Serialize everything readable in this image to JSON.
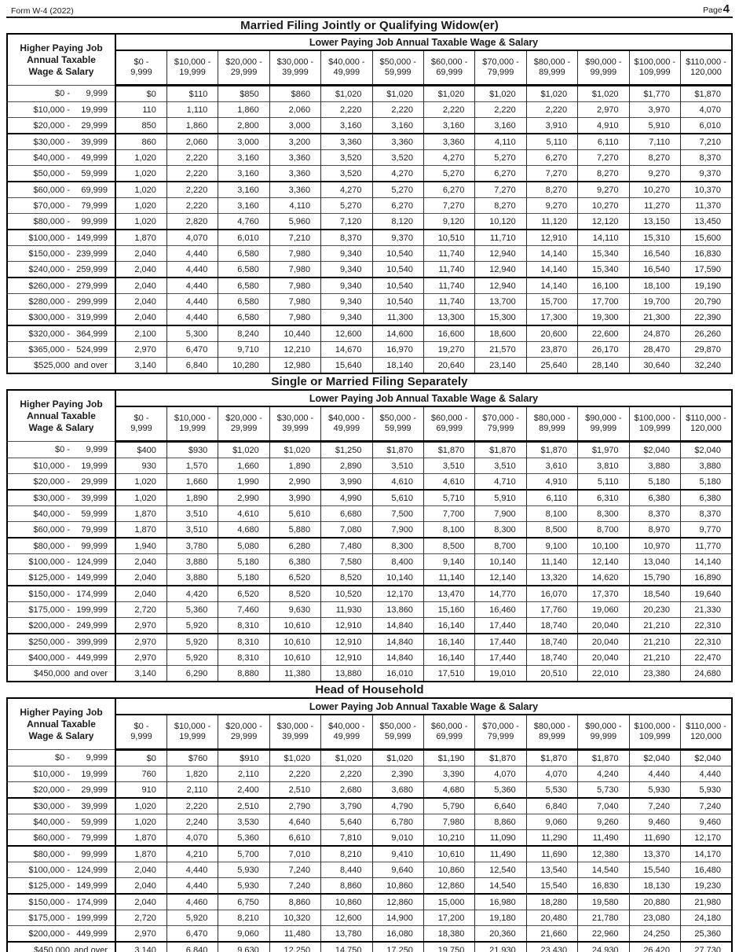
{
  "header": {
    "form_id": "Form W-4 (2022)",
    "page_label": "Page",
    "page_number": "4"
  },
  "shared": {
    "higher_label": [
      "Higher Paying Job",
      "Annual Taxable",
      "Wage & Salary"
    ],
    "lower_label": "Lower Paying Job Annual Taxable Wage & Salary",
    "columns": [
      [
        "$0 -",
        "9,999"
      ],
      [
        "$10,000 -",
        "19,999"
      ],
      [
        "$20,000 -",
        "29,999"
      ],
      [
        "$30,000 -",
        "39,999"
      ],
      [
        "$40,000 -",
        "49,999"
      ],
      [
        "$50,000 -",
        "59,999"
      ],
      [
        "$60,000 -",
        "69,999"
      ],
      [
        "$70,000 -",
        "79,999"
      ],
      [
        "$80,000 -",
        "89,999"
      ],
      [
        "$90,000 -",
        "99,999"
      ],
      [
        "$100,000 -",
        "109,999"
      ],
      [
        "$110,000 -",
        "120,000"
      ]
    ]
  },
  "tables": [
    {
      "title": "Married Filing Jointly or Qualifying Widow(er)",
      "rows": [
        {
          "range": [
            "$0 -",
            "9,999"
          ],
          "values": [
            "$0",
            "$110",
            "$850",
            "$860",
            "$1,020",
            "$1,020",
            "$1,020",
            "$1,020",
            "$1,020",
            "$1,020",
            "$1,770",
            "$1,870"
          ]
        },
        {
          "range": [
            "$10,000 -",
            "19,999"
          ],
          "values": [
            "110",
            "1,110",
            "1,860",
            "2,060",
            "2,220",
            "2,220",
            "2,220",
            "2,220",
            "2,220",
            "2,970",
            "3,970",
            "4,070"
          ]
        },
        {
          "range": [
            "$20,000 -",
            "29,999"
          ],
          "values": [
            "850",
            "1,860",
            "2,800",
            "3,000",
            "3,160",
            "3,160",
            "3,160",
            "3,160",
            "3,910",
            "4,910",
            "5,910",
            "6,010"
          ]
        },
        {
          "range": [
            "$30,000 -",
            "39,999"
          ],
          "values": [
            "860",
            "2,060",
            "3,000",
            "3,200",
            "3,360",
            "3,360",
            "3,360",
            "4,110",
            "5,110",
            "6,110",
            "7,110",
            "7,210"
          ]
        },
        {
          "range": [
            "$40,000 -",
            "49,999"
          ],
          "values": [
            "1,020",
            "2,220",
            "3,160",
            "3,360",
            "3,520",
            "3,520",
            "4,270",
            "5,270",
            "6,270",
            "7,270",
            "8,270",
            "8,370"
          ]
        },
        {
          "range": [
            "$50,000 -",
            "59,999"
          ],
          "values": [
            "1,020",
            "2,220",
            "3,160",
            "3,360",
            "3,520",
            "4,270",
            "5,270",
            "6,270",
            "7,270",
            "8,270",
            "9,270",
            "9,370"
          ]
        },
        {
          "range": [
            "$60,000 -",
            "69,999"
          ],
          "values": [
            "1,020",
            "2,220",
            "3,160",
            "3,360",
            "4,270",
            "5,270",
            "6,270",
            "7,270",
            "8,270",
            "9,270",
            "10,270",
            "10,370"
          ]
        },
        {
          "range": [
            "$70,000 -",
            "79,999"
          ],
          "values": [
            "1,020",
            "2,220",
            "3,160",
            "4,110",
            "5,270",
            "6,270",
            "7,270",
            "8,270",
            "9,270",
            "10,270",
            "11,270",
            "11,370"
          ]
        },
        {
          "range": [
            "$80,000 -",
            "99,999"
          ],
          "values": [
            "1,020",
            "2,820",
            "4,760",
            "5,960",
            "7,120",
            "8,120",
            "9,120",
            "10,120",
            "11,120",
            "12,120",
            "13,150",
            "13,450"
          ]
        },
        {
          "range": [
            "$100,000 -",
            "149,999"
          ],
          "values": [
            "1,870",
            "4,070",
            "6,010",
            "7,210",
            "8,370",
            "9,370",
            "10,510",
            "11,710",
            "12,910",
            "14,110",
            "15,310",
            "15,600"
          ]
        },
        {
          "range": [
            "$150,000 -",
            "239,999"
          ],
          "values": [
            "2,040",
            "4,440",
            "6,580",
            "7,980",
            "9,340",
            "10,540",
            "11,740",
            "12,940",
            "14,140",
            "15,340",
            "16,540",
            "16,830"
          ]
        },
        {
          "range": [
            "$240,000 -",
            "259,999"
          ],
          "values": [
            "2,040",
            "4,440",
            "6,580",
            "7,980",
            "9,340",
            "10,540",
            "11,740",
            "12,940",
            "14,140",
            "15,340",
            "16,540",
            "17,590"
          ]
        },
        {
          "range": [
            "$260,000 -",
            "279,999"
          ],
          "values": [
            "2,040",
            "4,440",
            "6,580",
            "7,980",
            "9,340",
            "10,540",
            "11,740",
            "12,940",
            "14,140",
            "16,100",
            "18,100",
            "19,190"
          ]
        },
        {
          "range": [
            "$280,000 -",
            "299,999"
          ],
          "values": [
            "2,040",
            "4,440",
            "6,580",
            "7,980",
            "9,340",
            "10,540",
            "11,740",
            "13,700",
            "15,700",
            "17,700",
            "19,700",
            "20,790"
          ]
        },
        {
          "range": [
            "$300,000 -",
            "319,999"
          ],
          "values": [
            "2,040",
            "4,440",
            "6,580",
            "7,980",
            "9,340",
            "11,300",
            "13,300",
            "15,300",
            "17,300",
            "19,300",
            "21,300",
            "22,390"
          ]
        },
        {
          "range": [
            "$320,000 -",
            "364,999"
          ],
          "values": [
            "2,100",
            "5,300",
            "8,240",
            "10,440",
            "12,600",
            "14,600",
            "16,600",
            "18,600",
            "20,600",
            "22,600",
            "24,870",
            "26,260"
          ]
        },
        {
          "range": [
            "$365,000 -",
            "524,999"
          ],
          "values": [
            "2,970",
            "6,470",
            "9,710",
            "12,210",
            "14,670",
            "16,970",
            "19,270",
            "21,570",
            "23,870",
            "26,170",
            "28,470",
            "29,870"
          ]
        },
        {
          "range": [
            "$525,000",
            "and over"
          ],
          "values": [
            "3,140",
            "6,840",
            "10,280",
            "12,980",
            "15,640",
            "18,140",
            "20,640",
            "23,140",
            "25,640",
            "28,140",
            "30,640",
            "32,240"
          ]
        }
      ]
    },
    {
      "title": "Single or Married Filing Separately",
      "rows": [
        {
          "range": [
            "$0 -",
            "9,999"
          ],
          "values": [
            "$400",
            "$930",
            "$1,020",
            "$1,020",
            "$1,250",
            "$1,870",
            "$1,870",
            "$1,870",
            "$1,870",
            "$1,970",
            "$2,040",
            "$2,040"
          ]
        },
        {
          "range": [
            "$10,000 -",
            "19,999"
          ],
          "values": [
            "930",
            "1,570",
            "1,660",
            "1,890",
            "2,890",
            "3,510",
            "3,510",
            "3,510",
            "3,610",
            "3,810",
            "3,880",
            "3,880"
          ]
        },
        {
          "range": [
            "$20,000 -",
            "29,999"
          ],
          "values": [
            "1,020",
            "1,660",
            "1,990",
            "2,990",
            "3,990",
            "4,610",
            "4,610",
            "4,710",
            "4,910",
            "5,110",
            "5,180",
            "5,180"
          ]
        },
        {
          "range": [
            "$30,000 -",
            "39,999"
          ],
          "values": [
            "1,020",
            "1,890",
            "2,990",
            "3,990",
            "4,990",
            "5,610",
            "5,710",
            "5,910",
            "6,110",
            "6,310",
            "6,380",
            "6,380"
          ]
        },
        {
          "range": [
            "$40,000 -",
            "59,999"
          ],
          "values": [
            "1,870",
            "3,510",
            "4,610",
            "5,610",
            "6,680",
            "7,500",
            "7,700",
            "7,900",
            "8,100",
            "8,300",
            "8,370",
            "8,370"
          ]
        },
        {
          "range": [
            "$60,000 -",
            "79,999"
          ],
          "values": [
            "1,870",
            "3,510",
            "4,680",
            "5,880",
            "7,080",
            "7,900",
            "8,100",
            "8,300",
            "8,500",
            "8,700",
            "8,970",
            "9,770"
          ]
        },
        {
          "range": [
            "$80,000 -",
            "99,999"
          ],
          "values": [
            "1,940",
            "3,780",
            "5,080",
            "6,280",
            "7,480",
            "8,300",
            "8,500",
            "8,700",
            "9,100",
            "10,100",
            "10,970",
            "11,770"
          ]
        },
        {
          "range": [
            "$100,000 -",
            "124,999"
          ],
          "values": [
            "2,040",
            "3,880",
            "5,180",
            "6,380",
            "7,580",
            "8,400",
            "9,140",
            "10,140",
            "11,140",
            "12,140",
            "13,040",
            "14,140"
          ]
        },
        {
          "range": [
            "$125,000 -",
            "149,999"
          ],
          "values": [
            "2,040",
            "3,880",
            "5,180",
            "6,520",
            "8,520",
            "10,140",
            "11,140",
            "12,140",
            "13,320",
            "14,620",
            "15,790",
            "16,890"
          ]
        },
        {
          "range": [
            "$150,000 -",
            "174,999"
          ],
          "values": [
            "2,040",
            "4,420",
            "6,520",
            "8,520",
            "10,520",
            "12,170",
            "13,470",
            "14,770",
            "16,070",
            "17,370",
            "18,540",
            "19,640"
          ]
        },
        {
          "range": [
            "$175,000 -",
            "199,999"
          ],
          "values": [
            "2,720",
            "5,360",
            "7,460",
            "9,630",
            "11,930",
            "13,860",
            "15,160",
            "16,460",
            "17,760",
            "19,060",
            "20,230",
            "21,330"
          ]
        },
        {
          "range": [
            "$200,000 -",
            "249,999"
          ],
          "values": [
            "2,970",
            "5,920",
            "8,310",
            "10,610",
            "12,910",
            "14,840",
            "16,140",
            "17,440",
            "18,740",
            "20,040",
            "21,210",
            "22,310"
          ]
        },
        {
          "range": [
            "$250,000 -",
            "399,999"
          ],
          "values": [
            "2,970",
            "5,920",
            "8,310",
            "10,610",
            "12,910",
            "14,840",
            "16,140",
            "17,440",
            "18,740",
            "20,040",
            "21,210",
            "22,310"
          ]
        },
        {
          "range": [
            "$400,000 -",
            "449,999"
          ],
          "values": [
            "2,970",
            "5,920",
            "8,310",
            "10,610",
            "12,910",
            "14,840",
            "16,140",
            "17,440",
            "18,740",
            "20,040",
            "21,210",
            "22,470"
          ]
        },
        {
          "range": [
            "$450,000",
            "and over"
          ],
          "values": [
            "3,140",
            "6,290",
            "8,880",
            "11,380",
            "13,880",
            "16,010",
            "17,510",
            "19,010",
            "20,510",
            "22,010",
            "23,380",
            "24,680"
          ]
        }
      ]
    },
    {
      "title": "Head of Household",
      "rows": [
        {
          "range": [
            "$0 -",
            "9,999"
          ],
          "values": [
            "$0",
            "$760",
            "$910",
            "$1,020",
            "$1,020",
            "$1,020",
            "$1,190",
            "$1,870",
            "$1,870",
            "$1,870",
            "$2,040",
            "$2,040"
          ]
        },
        {
          "range": [
            "$10,000 -",
            "19,999"
          ],
          "values": [
            "760",
            "1,820",
            "2,110",
            "2,220",
            "2,220",
            "2,390",
            "3,390",
            "4,070",
            "4,070",
            "4,240",
            "4,440",
            "4,440"
          ]
        },
        {
          "range": [
            "$20,000 -",
            "29,999"
          ],
          "values": [
            "910",
            "2,110",
            "2,400",
            "2,510",
            "2,680",
            "3,680",
            "4,680",
            "5,360",
            "5,530",
            "5,730",
            "5,930",
            "5,930"
          ]
        },
        {
          "range": [
            "$30,000 -",
            "39,999"
          ],
          "values": [
            "1,020",
            "2,220",
            "2,510",
            "2,790",
            "3,790",
            "4,790",
            "5,790",
            "6,640",
            "6,840",
            "7,040",
            "7,240",
            "7,240"
          ]
        },
        {
          "range": [
            "$40,000 -",
            "59,999"
          ],
          "values": [
            "1,020",
            "2,240",
            "3,530",
            "4,640",
            "5,640",
            "6,780",
            "7,980",
            "8,860",
            "9,060",
            "9,260",
            "9,460",
            "9,460"
          ]
        },
        {
          "range": [
            "$60,000 -",
            "79,999"
          ],
          "values": [
            "1,870",
            "4,070",
            "5,360",
            "6,610",
            "7,810",
            "9,010",
            "10,210",
            "11,090",
            "11,290",
            "11,490",
            "11,690",
            "12,170"
          ]
        },
        {
          "range": [
            "$80,000 -",
            "99,999"
          ],
          "values": [
            "1,870",
            "4,210",
            "5,700",
            "7,010",
            "8,210",
            "9,410",
            "10,610",
            "11,490",
            "11,690",
            "12,380",
            "13,370",
            "14,170"
          ]
        },
        {
          "range": [
            "$100,000 -",
            "124,999"
          ],
          "values": [
            "2,040",
            "4,440",
            "5,930",
            "7,240",
            "8,440",
            "9,640",
            "10,860",
            "12,540",
            "13,540",
            "14,540",
            "15,540",
            "16,480"
          ]
        },
        {
          "range": [
            "$125,000 -",
            "149,999"
          ],
          "values": [
            "2,040",
            "4,440",
            "5,930",
            "7,240",
            "8,860",
            "10,860",
            "12,860",
            "14,540",
            "15,540",
            "16,830",
            "18,130",
            "19,230"
          ]
        },
        {
          "range": [
            "$150,000 -",
            "174,999"
          ],
          "values": [
            "2,040",
            "4,460",
            "6,750",
            "8,860",
            "10,860",
            "12,860",
            "15,000",
            "16,980",
            "18,280",
            "19,580",
            "20,880",
            "21,980"
          ]
        },
        {
          "range": [
            "$175,000 -",
            "199,999"
          ],
          "values": [
            "2,720",
            "5,920",
            "8,210",
            "10,320",
            "12,600",
            "14,900",
            "17,200",
            "19,180",
            "20,480",
            "21,780",
            "23,080",
            "24,180"
          ]
        },
        {
          "range": [
            "$200,000 -",
            "449,999"
          ],
          "values": [
            "2,970",
            "6,470",
            "9,060",
            "11,480",
            "13,780",
            "16,080",
            "18,380",
            "20,360",
            "21,660",
            "22,960",
            "24,250",
            "25,360"
          ]
        },
        {
          "range": [
            "$450,000",
            "and over"
          ],
          "values": [
            "3,140",
            "6,840",
            "9,630",
            "12,250",
            "14,750",
            "17,250",
            "19,750",
            "21,930",
            "23,430",
            "24,930",
            "26,420",
            "27,730"
          ]
        }
      ]
    }
  ]
}
